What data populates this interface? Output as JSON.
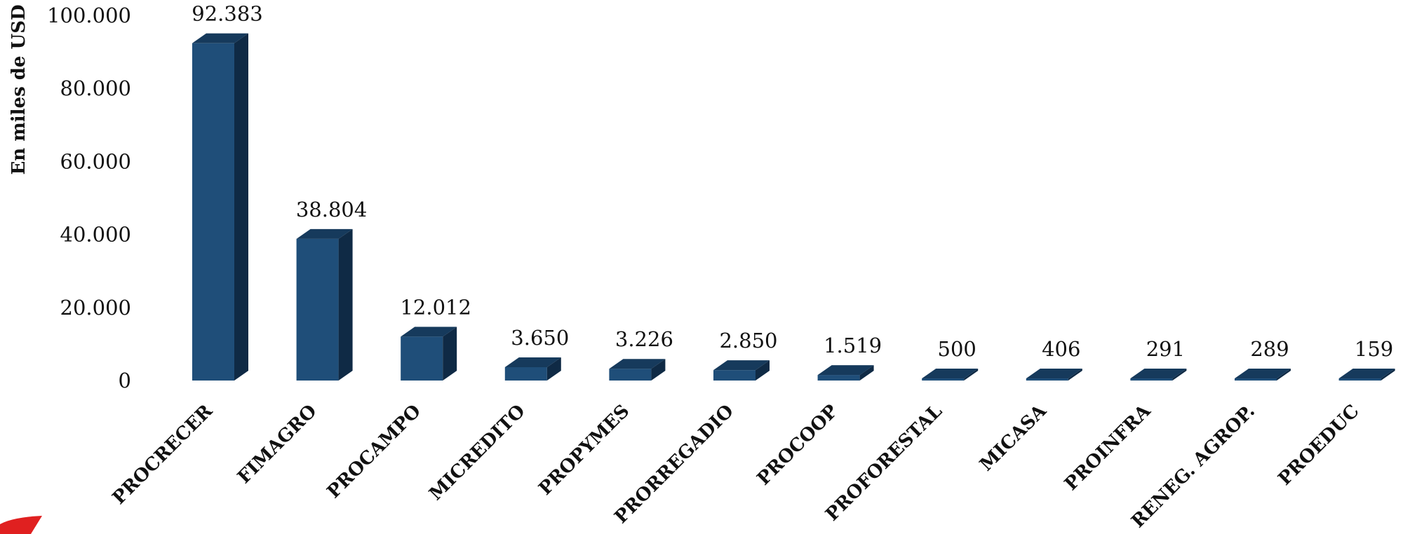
{
  "chart_data": {
    "type": "bar",
    "ylabel": "En miles de USD",
    "ylim": [
      0,
      100000
    ],
    "ytick_values": [
      0,
      20000,
      40000,
      60000,
      80000,
      100000
    ],
    "ytick_labels": [
      "0",
      "20.000",
      "40.000",
      "60.000",
      "80.000",
      "100.000"
    ],
    "categories": [
      "PROCRECER",
      "FIMAGRO",
      "PROCAMPO",
      "MICREDITO",
      "PROPYMES",
      "PRORREGADIO",
      "PROCOOP",
      "PROFORESTAL",
      "MICASA",
      "PROINFRA",
      "RENEG. AGROP.",
      "PROEDUC"
    ],
    "values": [
      92383,
      38804,
      12012,
      3650,
      3226,
      2850,
      1519,
      500,
      406,
      291,
      289,
      159
    ],
    "data_labels": [
      "92.383",
      "38.804",
      "12.012",
      "3.650",
      "3.226",
      "2.850",
      "1.519",
      "500",
      "406",
      "291",
      "289",
      "159"
    ],
    "grid": false,
    "legend": "none",
    "colors": {
      "front": "#1f4e79",
      "top": "#163a5c",
      "side": "#0f2a45"
    }
  }
}
